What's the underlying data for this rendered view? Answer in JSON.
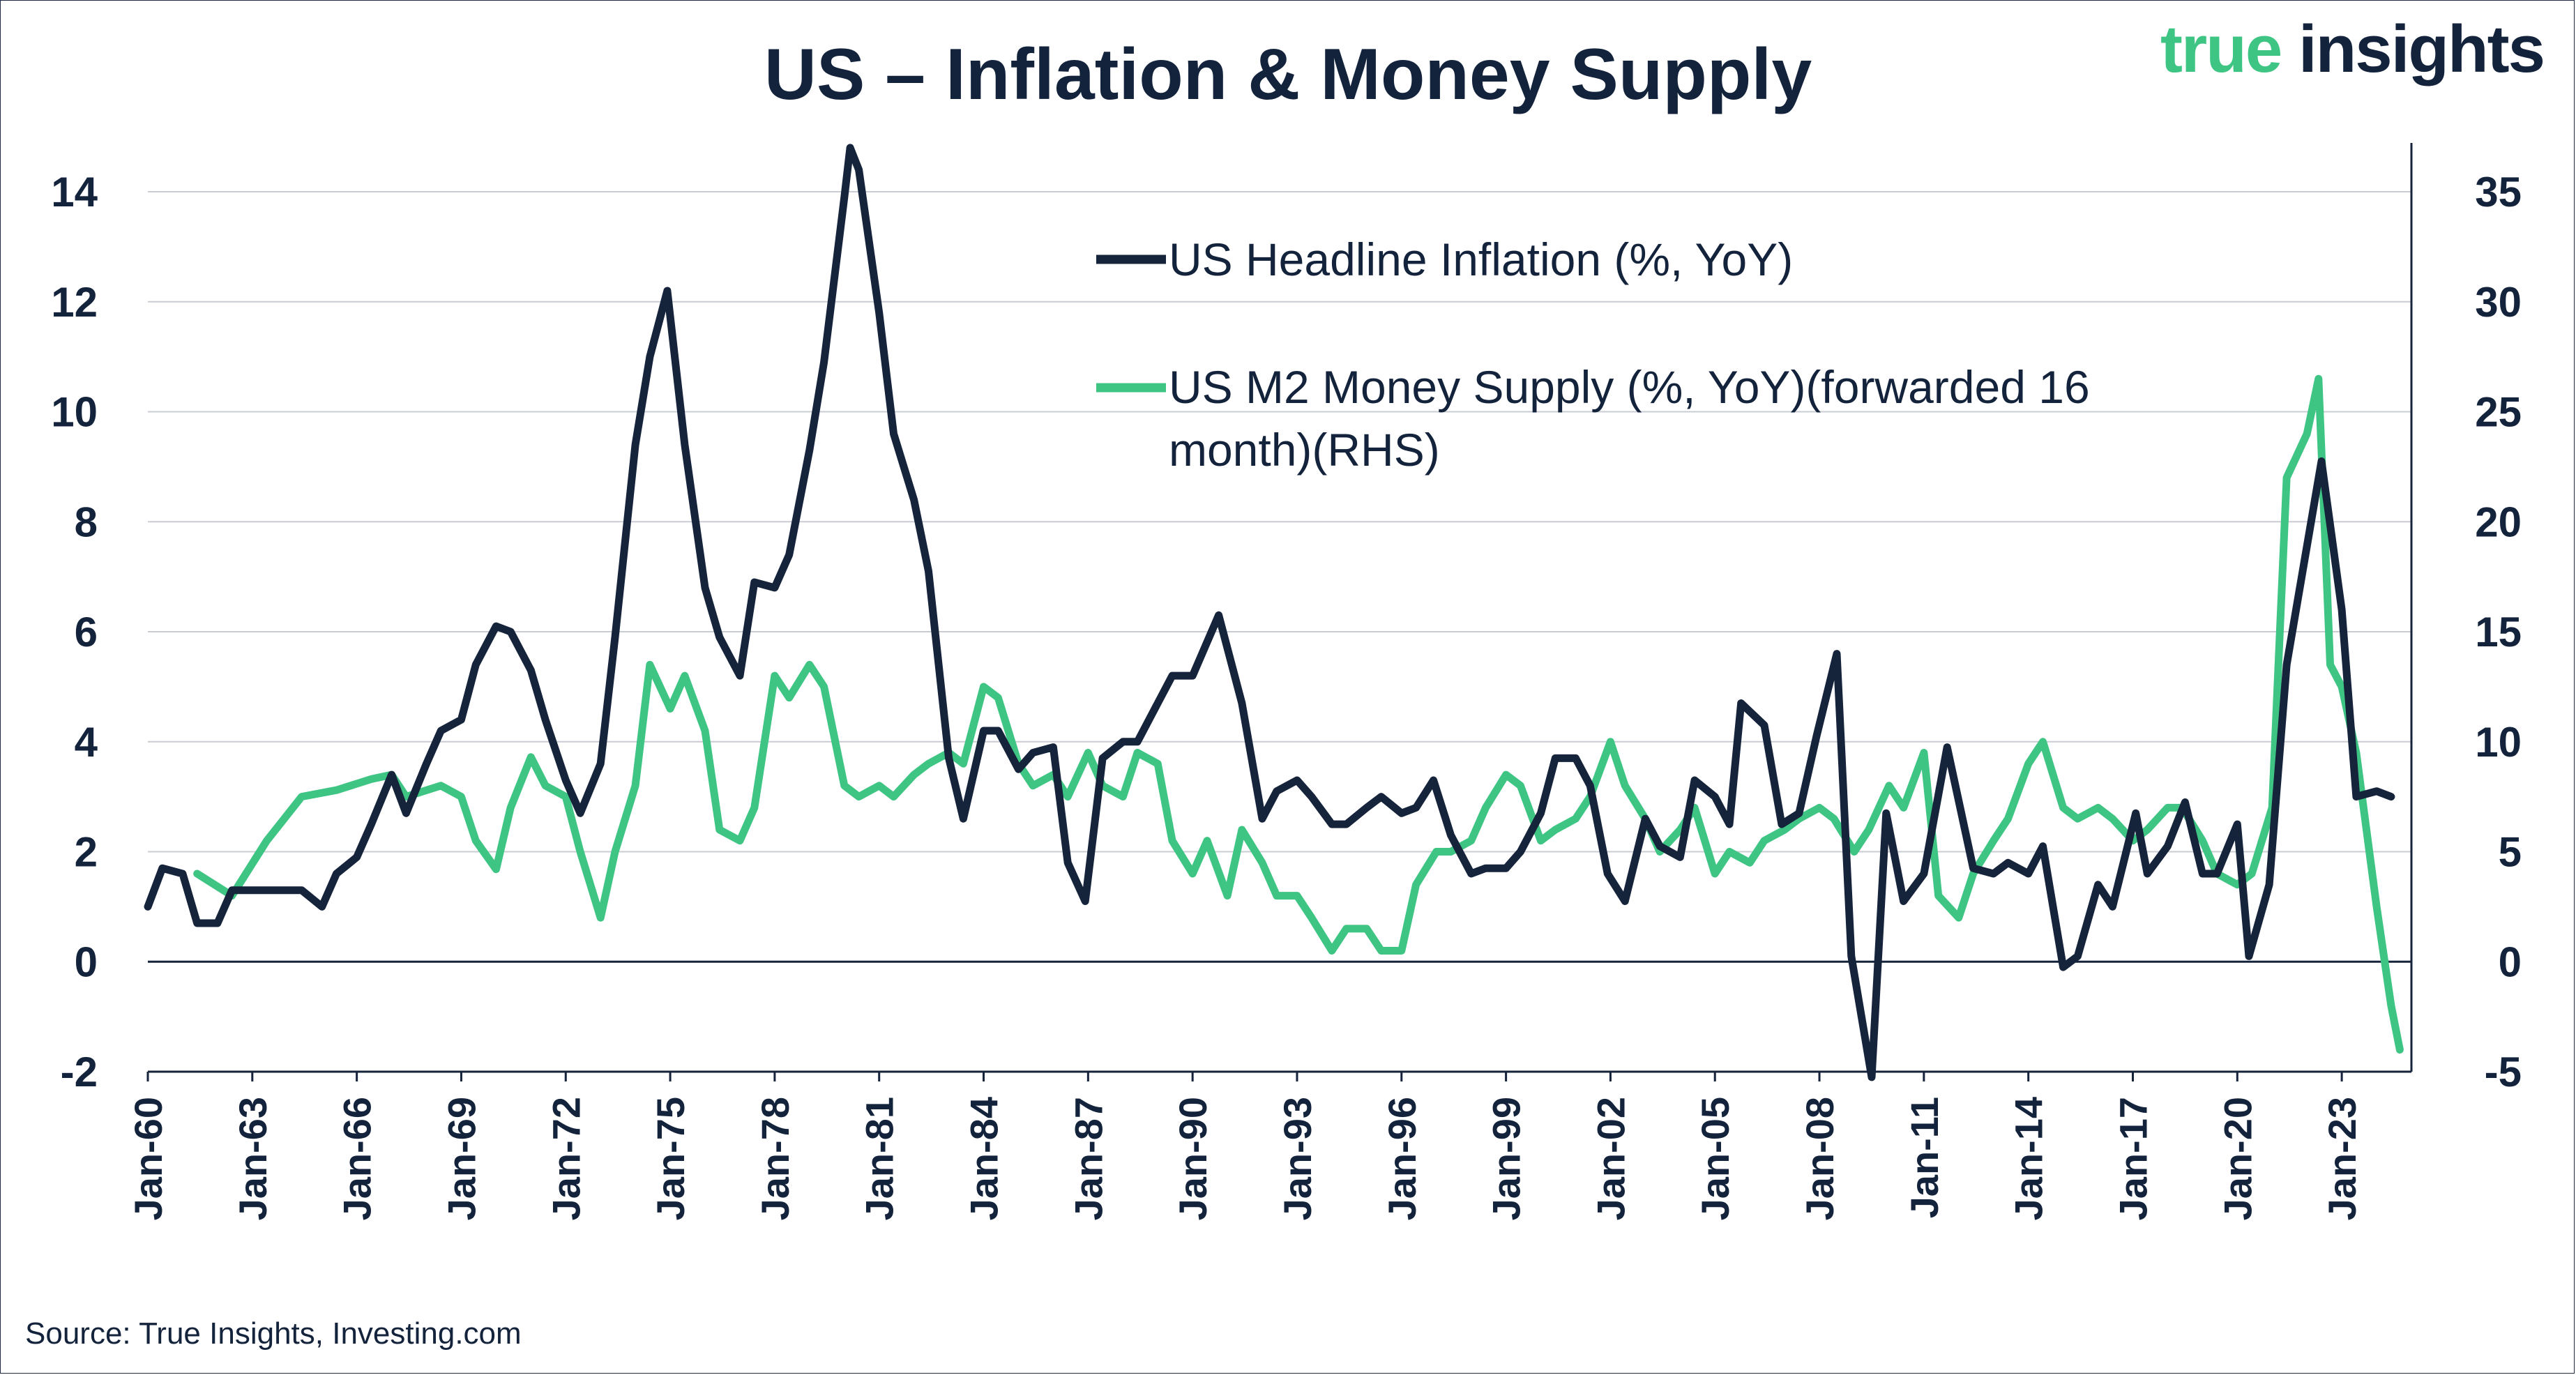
{
  "chart_data": {
    "type": "line",
    "title": "US – Inflation & Money Supply",
    "source": "Source: True Insights, Investing.com",
    "logo": {
      "word1": "true",
      "word2": "insights"
    },
    "x_tick_labels": [
      "Jan-60",
      "Jan-63",
      "Jan-66",
      "Jan-69",
      "Jan-72",
      "Jan-75",
      "Jan-78",
      "Jan-81",
      "Jan-84",
      "Jan-87",
      "Jan-90",
      "Jan-93",
      "Jan-96",
      "Jan-99",
      "Jan-02",
      "Jan-05",
      "Jan-08",
      "Jan-11",
      "Jan-14",
      "Jan-17",
      "Jan-20",
      "Jan-23"
    ],
    "x_range": [
      "1960-01",
      "2024-12"
    ],
    "y_left": {
      "ticks": [
        "14",
        "12",
        "10",
        "8",
        "6",
        "4",
        "2",
        "0",
        "-2"
      ],
      "min": -2,
      "max": 14
    },
    "y_right": {
      "ticks": [
        "35",
        "30",
        "25",
        "20",
        "15",
        "10",
        "5",
        "0",
        "-5"
      ],
      "min": -5,
      "max": 35
    },
    "grid": true,
    "legend_position": "top-center",
    "colors": {
      "inflation": "#15233b",
      "m2": "#3ec583",
      "grid": "#c9ccd3",
      "axis": "#15233b"
    },
    "series": [
      {
        "name": "US Headline Inflation (%, YoY)",
        "axis": "left",
        "points": [
          [
            "1960-01",
            1.0
          ],
          [
            "1960-06",
            1.7
          ],
          [
            "1961-01",
            1.6
          ],
          [
            "1961-06",
            0.7
          ],
          [
            "1962-01",
            0.7
          ],
          [
            "1962-06",
            1.3
          ],
          [
            "1963-01",
            1.3
          ],
          [
            "1963-06",
            1.3
          ],
          [
            "1964-01",
            1.3
          ],
          [
            "1964-06",
            1.3
          ],
          [
            "1965-01",
            1.0
          ],
          [
            "1965-06",
            1.6
          ],
          [
            "1966-01",
            1.9
          ],
          [
            "1966-06",
            2.5
          ],
          [
            "1967-01",
            3.4
          ],
          [
            "1967-06",
            2.7
          ],
          [
            "1968-01",
            3.6
          ],
          [
            "1968-06",
            4.2
          ],
          [
            "1969-01",
            4.4
          ],
          [
            "1969-06",
            5.4
          ],
          [
            "1970-01",
            6.1
          ],
          [
            "1970-06",
            6.0
          ],
          [
            "1971-01",
            5.3
          ],
          [
            "1971-06",
            4.4
          ],
          [
            "1972-01",
            3.3
          ],
          [
            "1972-06",
            2.7
          ],
          [
            "1973-01",
            3.6
          ],
          [
            "1973-06",
            5.9
          ],
          [
            "1974-01",
            9.4
          ],
          [
            "1974-06",
            11.0
          ],
          [
            "1974-12",
            12.2
          ],
          [
            "1975-06",
            9.4
          ],
          [
            "1976-01",
            6.8
          ],
          [
            "1976-06",
            5.9
          ],
          [
            "1977-01",
            5.2
          ],
          [
            "1977-06",
            6.9
          ],
          [
            "1978-01",
            6.8
          ],
          [
            "1978-06",
            7.4
          ],
          [
            "1979-01",
            9.3
          ],
          [
            "1979-06",
            10.9
          ],
          [
            "1980-01",
            13.9
          ],
          [
            "1980-03",
            14.8
          ],
          [
            "1980-06",
            14.4
          ],
          [
            "1981-01",
            11.8
          ],
          [
            "1981-06",
            9.6
          ],
          [
            "1982-01",
            8.4
          ],
          [
            "1982-06",
            7.1
          ],
          [
            "1983-01",
            3.7
          ],
          [
            "1983-06",
            2.6
          ],
          [
            "1984-01",
            4.2
          ],
          [
            "1984-06",
            4.2
          ],
          [
            "1985-01",
            3.5
          ],
          [
            "1985-06",
            3.8
          ],
          [
            "1986-01",
            3.9
          ],
          [
            "1986-06",
            1.8
          ],
          [
            "1986-12",
            1.1
          ],
          [
            "1987-06",
            3.7
          ],
          [
            "1988-01",
            4.0
          ],
          [
            "1988-06",
            4.0
          ],
          [
            "1989-01",
            4.7
          ],
          [
            "1989-06",
            5.2
          ],
          [
            "1990-01",
            5.2
          ],
          [
            "1990-10",
            6.3
          ],
          [
            "1991-06",
            4.7
          ],
          [
            "1992-01",
            2.6
          ],
          [
            "1992-06",
            3.1
          ],
          [
            "1993-01",
            3.3
          ],
          [
            "1993-06",
            3.0
          ],
          [
            "1994-01",
            2.5
          ],
          [
            "1994-06",
            2.5
          ],
          [
            "1995-01",
            2.8
          ],
          [
            "1995-06",
            3.0
          ],
          [
            "1996-01",
            2.7
          ],
          [
            "1996-06",
            2.8
          ],
          [
            "1996-12",
            3.3
          ],
          [
            "1997-06",
            2.3
          ],
          [
            "1998-01",
            1.6
          ],
          [
            "1998-06",
            1.7
          ],
          [
            "1999-01",
            1.7
          ],
          [
            "1999-06",
            2.0
          ],
          [
            "2000-01",
            2.7
          ],
          [
            "2000-06",
            3.7
          ],
          [
            "2001-01",
            3.7
          ],
          [
            "2001-06",
            3.2
          ],
          [
            "2001-12",
            1.6
          ],
          [
            "2002-06",
            1.1
          ],
          [
            "2003-01",
            2.6
          ],
          [
            "2003-06",
            2.1
          ],
          [
            "2004-01",
            1.9
          ],
          [
            "2004-06",
            3.3
          ],
          [
            "2005-01",
            3.0
          ],
          [
            "2005-06",
            2.5
          ],
          [
            "2005-10",
            4.7
          ],
          [
            "2006-06",
            4.3
          ],
          [
            "2006-12",
            2.5
          ],
          [
            "2007-06",
            2.7
          ],
          [
            "2007-12",
            4.1
          ],
          [
            "2008-07",
            5.6
          ],
          [
            "2008-12",
            0.1
          ],
          [
            "2009-07",
            -2.1
          ],
          [
            "2009-12",
            2.7
          ],
          [
            "2010-06",
            1.1
          ],
          [
            "2011-01",
            1.6
          ],
          [
            "2011-09",
            3.9
          ],
          [
            "2012-06",
            1.7
          ],
          [
            "2013-01",
            1.6
          ],
          [
            "2013-06",
            1.8
          ],
          [
            "2014-01",
            1.6
          ],
          [
            "2014-06",
            2.1
          ],
          [
            "2015-01",
            -0.1
          ],
          [
            "2015-06",
            0.1
          ],
          [
            "2016-01",
            1.4
          ],
          [
            "2016-06",
            1.0
          ],
          [
            "2017-02",
            2.7
          ],
          [
            "2017-06",
            1.6
          ],
          [
            "2018-01",
            2.1
          ],
          [
            "2018-07",
            2.9
          ],
          [
            "2019-01",
            1.6
          ],
          [
            "2019-06",
            1.6
          ],
          [
            "2020-01",
            2.5
          ],
          [
            "2020-05",
            0.1
          ],
          [
            "2020-12",
            1.4
          ],
          [
            "2021-06",
            5.4
          ],
          [
            "2022-06",
            9.1
          ],
          [
            "2023-01",
            6.4
          ],
          [
            "2023-06",
            3.0
          ],
          [
            "2024-01",
            3.1
          ],
          [
            "2024-06",
            3.0
          ]
        ]
      },
      {
        "name": "US M2 Money Supply (%, YoY)(forwarded 16 month)(RHS)",
        "axis": "right",
        "points": [
          [
            "1961-06",
            4.0
          ],
          [
            "1962-06",
            3.0
          ],
          [
            "1963-06",
            5.5
          ],
          [
            "1964-06",
            7.5
          ],
          [
            "1965-06",
            7.8
          ],
          [
            "1966-06",
            8.3
          ],
          [
            "1967-01",
            8.5
          ],
          [
            "1967-06",
            7.5
          ],
          [
            "1968-06",
            8.0
          ],
          [
            "1969-01",
            7.5
          ],
          [
            "1969-06",
            5.5
          ],
          [
            "1970-01",
            4.2
          ],
          [
            "1970-06",
            7.0
          ],
          [
            "1971-01",
            9.3
          ],
          [
            "1971-06",
            8.0
          ],
          [
            "1972-01",
            7.5
          ],
          [
            "1972-06",
            5.0
          ],
          [
            "1973-01",
            2.0
          ],
          [
            "1973-06",
            5.0
          ],
          [
            "1974-01",
            8.0
          ],
          [
            "1974-06",
            13.5
          ],
          [
            "1975-01",
            11.5
          ],
          [
            "1975-06",
            13.0
          ],
          [
            "1976-01",
            10.5
          ],
          [
            "1976-06",
            6.0
          ],
          [
            "1977-01",
            5.5
          ],
          [
            "1977-06",
            7.0
          ],
          [
            "1978-01",
            13.0
          ],
          [
            "1978-06",
            12.0
          ],
          [
            "1979-01",
            13.5
          ],
          [
            "1979-06",
            12.5
          ],
          [
            "1980-01",
            8.0
          ],
          [
            "1980-06",
            7.5
          ],
          [
            "1981-01",
            8.0
          ],
          [
            "1981-06",
            7.5
          ],
          [
            "1982-01",
            8.5
          ],
          [
            "1982-06",
            9.0
          ],
          [
            "1983-01",
            9.5
          ],
          [
            "1983-06",
            9.0
          ],
          [
            "1984-01",
            12.5
          ],
          [
            "1984-06",
            12.0
          ],
          [
            "1985-01",
            9.0
          ],
          [
            "1985-06",
            8.0
          ],
          [
            "1986-01",
            8.5
          ],
          [
            "1986-06",
            7.5
          ],
          [
            "1987-01",
            9.5
          ],
          [
            "1987-06",
            8.0
          ],
          [
            "1988-01",
            7.5
          ],
          [
            "1988-06",
            9.5
          ],
          [
            "1989-01",
            9.0
          ],
          [
            "1989-06",
            5.5
          ],
          [
            "1990-01",
            4.0
          ],
          [
            "1990-06",
            5.5
          ],
          [
            "1991-01",
            3.0
          ],
          [
            "1991-06",
            6.0
          ],
          [
            "1992-01",
            4.5
          ],
          [
            "1992-06",
            3.0
          ],
          [
            "1993-01",
            3.0
          ],
          [
            "1993-06",
            2.0
          ],
          [
            "1994-01",
            0.5
          ],
          [
            "1994-06",
            1.5
          ],
          [
            "1995-01",
            1.5
          ],
          [
            "1995-06",
            0.5
          ],
          [
            "1996-01",
            0.5
          ],
          [
            "1996-06",
            3.5
          ],
          [
            "1997-01",
            5.0
          ],
          [
            "1997-06",
            5.0
          ],
          [
            "1998-01",
            5.5
          ],
          [
            "1998-06",
            7.0
          ],
          [
            "1999-01",
            8.5
          ],
          [
            "1999-06",
            8.0
          ],
          [
            "2000-01",
            5.5
          ],
          [
            "2000-06",
            6.0
          ],
          [
            "2001-01",
            6.5
          ],
          [
            "2001-06",
            7.5
          ],
          [
            "2002-01",
            10.0
          ],
          [
            "2002-06",
            8.0
          ],
          [
            "2003-01",
            6.5
          ],
          [
            "2003-06",
            5.0
          ],
          [
            "2004-01",
            6.0
          ],
          [
            "2004-06",
            7.0
          ],
          [
            "2005-01",
            4.0
          ],
          [
            "2005-06",
            5.0
          ],
          [
            "2006-01",
            4.5
          ],
          [
            "2006-06",
            5.5
          ],
          [
            "2007-01",
            6.0
          ],
          [
            "2007-06",
            6.5
          ],
          [
            "2008-01",
            7.0
          ],
          [
            "2008-06",
            6.5
          ],
          [
            "2009-01",
            5.0
          ],
          [
            "2009-06",
            6.0
          ],
          [
            "2010-01",
            8.0
          ],
          [
            "2010-06",
            7.0
          ],
          [
            "2011-01",
            9.5
          ],
          [
            "2011-06",
            3.0
          ],
          [
            "2012-01",
            2.0
          ],
          [
            "2012-06",
            4.0
          ],
          [
            "2013-01",
            5.5
          ],
          [
            "2013-06",
            6.5
          ],
          [
            "2014-01",
            9.0
          ],
          [
            "2014-06",
            10.0
          ],
          [
            "2015-01",
            7.0
          ],
          [
            "2015-06",
            6.5
          ],
          [
            "2016-01",
            7.0
          ],
          [
            "2016-06",
            6.5
          ],
          [
            "2017-01",
            5.5
          ],
          [
            "2017-06",
            6.0
          ],
          [
            "2018-01",
            7.0
          ],
          [
            "2018-06",
            7.0
          ],
          [
            "2019-01",
            5.5
          ],
          [
            "2019-06",
            4.0
          ],
          [
            "2020-01",
            3.5
          ],
          [
            "2020-06",
            4.0
          ],
          [
            "2021-01",
            7.0
          ],
          [
            "2021-06",
            22.0
          ],
          [
            "2022-01",
            24.0
          ],
          [
            "2022-05",
            26.5
          ],
          [
            "2022-09",
            13.5
          ],
          [
            "2023-01",
            12.5
          ],
          [
            "2023-06",
            9.5
          ],
          [
            "2024-01",
            2.5
          ],
          [
            "2024-06",
            -2.0
          ],
          [
            "2024-09",
            -4.0
          ]
        ]
      }
    ]
  }
}
